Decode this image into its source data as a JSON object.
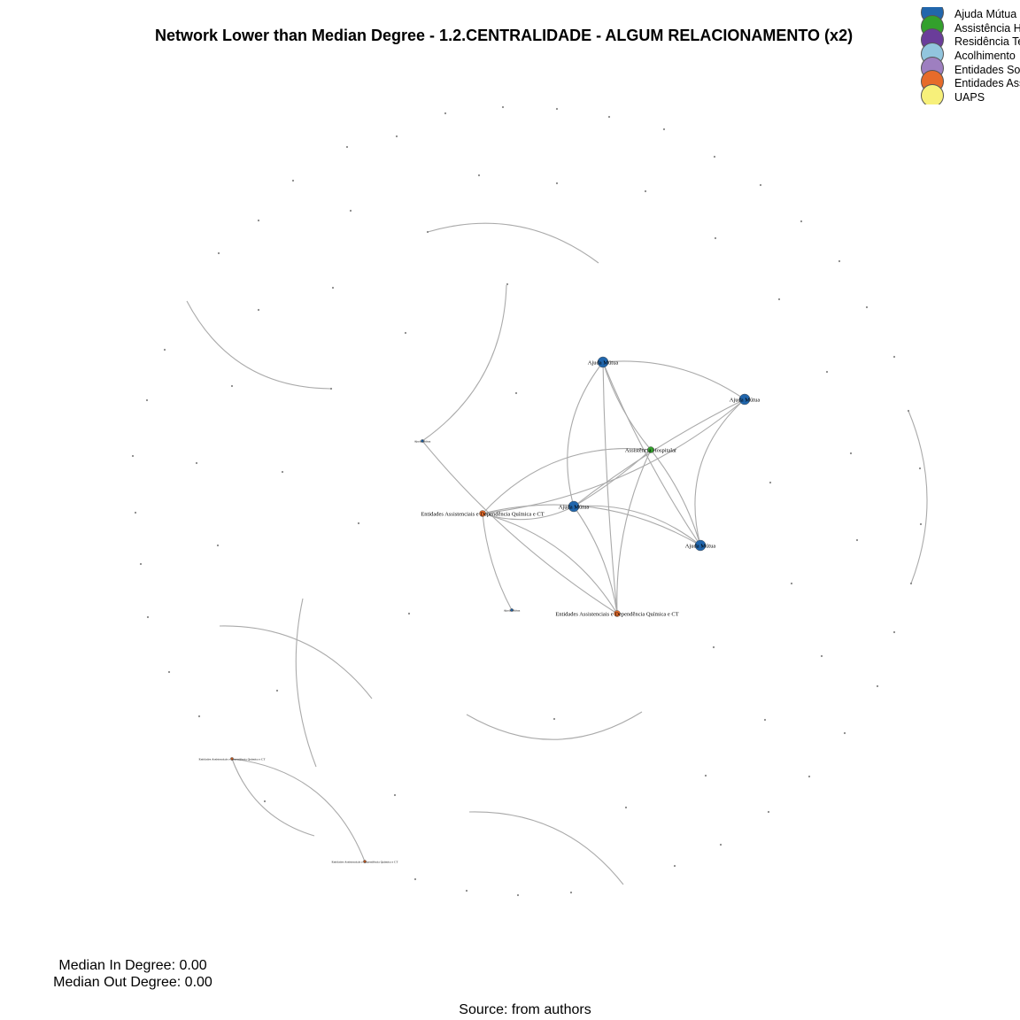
{
  "title": "Network Lower than Median Degree - 1.2.CENTRALIDADE - ALGUM RELACIONAMENTO (x2)",
  "legend": [
    {
      "label": "Ajuda Mútua",
      "color": "#2166ac"
    },
    {
      "label": "Assistência Hospitalar",
      "color": "#33a02c"
    },
    {
      "label": "Residência Terapêutica",
      "color": "#6a3d9a"
    },
    {
      "label": "Acolhimento",
      "color": "#92c5de"
    },
    {
      "label": "Entidades Socioassistenciais",
      "color": "#9e7fc0"
    },
    {
      "label": "Entidades Assistenciais e Dependência Química e CT",
      "color": "#e66b2a"
    },
    {
      "label": "UAPS",
      "color": "#f7f07a"
    }
  ],
  "median_in_degree": "Median In Degree: 0.00",
  "median_out_degree": "Median Out Degree: 0.00",
  "source": "Source: from authors",
  "network": {
    "node_types": {
      "AM": "Ajuda Mútua",
      "AH": "Assistência Hospitalar",
      "EA": "Entidades Assistenciais e Dependência Química e CT",
      "U": "UAPS"
    },
    "labeled_nodes": [
      {
        "id": "am1",
        "label": "Ajuda Mútua",
        "type": "AM",
        "major": true
      },
      {
        "id": "am2",
        "label": "Ajuda Mútua",
        "type": "AM",
        "major": true
      },
      {
        "id": "am3",
        "label": "Ajuda Mútua",
        "type": "AM",
        "major": true
      },
      {
        "id": "am4",
        "label": "Ajuda Mútua",
        "type": "AM",
        "major": true
      },
      {
        "id": "ah1",
        "label": "Assistência Hospitalar",
        "type": "AH",
        "major": true
      },
      {
        "id": "ea1",
        "label": "Entidades Assistenciais e Dependência Química e CT",
        "type": "EA",
        "major": true
      },
      {
        "id": "ea2",
        "label": "Entidades Assistenciais e Dependência Química e CT",
        "type": "EA",
        "major": true
      },
      {
        "id": "am5",
        "label": "Ajuda Mútua",
        "type": "AM",
        "major": false
      },
      {
        "id": "am6",
        "label": "Ajuda Mútua",
        "type": "AM",
        "major": false
      },
      {
        "id": "ea3",
        "label": "Entidades Assistenciais e Dependência Química e CT",
        "type": "EA",
        "major": false
      },
      {
        "id": "ea4",
        "label": "Entidades Assistenciais e Dependência Química e CT",
        "type": "EA",
        "major": false
      }
    ],
    "edges": [
      [
        "am1",
        "am2"
      ],
      [
        "am1",
        "am3"
      ],
      [
        "am1",
        "am4"
      ],
      [
        "am1",
        "ah1"
      ],
      [
        "am1",
        "ea2"
      ],
      [
        "am2",
        "am3"
      ],
      [
        "am2",
        "am4"
      ],
      [
        "am2",
        "ea1"
      ],
      [
        "am3",
        "am4"
      ],
      [
        "am3",
        "ah1"
      ],
      [
        "am3",
        "ea1"
      ],
      [
        "am3",
        "ea2"
      ],
      [
        "am4",
        "ah1"
      ],
      [
        "am4",
        "ea1"
      ],
      [
        "ah1",
        "ea2"
      ],
      [
        "ah1",
        "ea1"
      ],
      [
        "ea1",
        "ea2"
      ],
      [
        "am5",
        "ea2"
      ],
      [
        "am5",
        "n01"
      ],
      [
        "n02",
        "n03"
      ],
      [
        "n04",
        "n05"
      ],
      [
        "n06",
        "n07"
      ],
      [
        "n08",
        "n09"
      ],
      [
        "n10",
        "n11"
      ],
      [
        "n12",
        "n13"
      ],
      [
        "n14",
        "n15"
      ],
      [
        "ea3",
        "ea4"
      ],
      [
        "ea3",
        "n16"
      ],
      [
        "ea1",
        "n17"
      ]
    ]
  }
}
